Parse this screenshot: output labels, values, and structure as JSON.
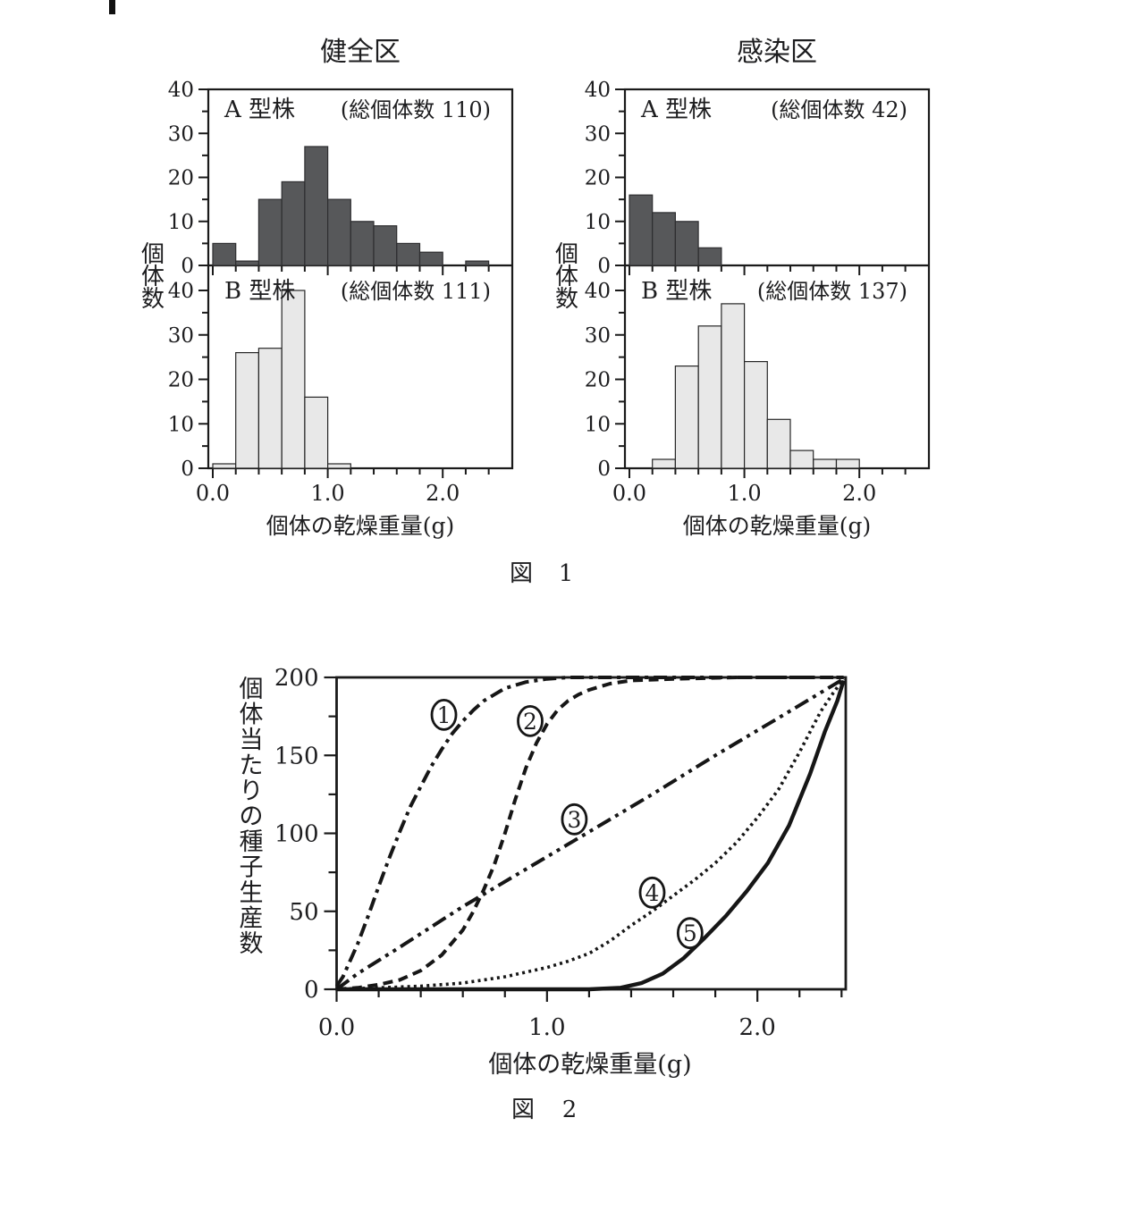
{
  "colors": {
    "axis": "#1a1a1a",
    "text": "#1d1d1f",
    "bar_dark_fill": "#57585a",
    "bar_dark_stroke": "#2e2e30",
    "bar_light_fill": "#e8e8e8",
    "bar_light_stroke": "#262626",
    "curve": "#161616",
    "background": "#ffffff"
  },
  "chart_data": [
    {
      "id": "fig1",
      "type": "bar",
      "caption": [
        "図",
        "1"
      ],
      "ylabel_chars": [
        "個",
        "体",
        "数"
      ],
      "xlabel": "個体の乾燥重量(g)",
      "ylim": [
        0,
        40
      ],
      "y_major_ticks": [
        0,
        10,
        20,
        30,
        40
      ],
      "y_minor_step": 5,
      "x_major_ticks": [
        0,
        1,
        2
      ],
      "x_tick_labels": [
        "0.0",
        "1.0",
        "2.0"
      ],
      "x_minor_step": 0.2,
      "bin_start": 0.0,
      "bin_width": 0.2,
      "groups": [
        {
          "title": "健全区",
          "panels": [
            {
              "strain": "A 型株",
              "total_label": "(総個体数 110)",
              "shade": "dark",
              "values": [
                5,
                1,
                15,
                19,
                27,
                15,
                10,
                9,
                5,
                3,
                0,
                1
              ]
            },
            {
              "strain": "B 型株",
              "total_label": "(総個体数 111)",
              "shade": "light",
              "values": [
                1,
                26,
                27,
                40,
                16,
                1,
                0,
                0,
                0,
                0,
                0,
                0
              ]
            }
          ]
        },
        {
          "title": "感染区",
          "panels": [
            {
              "strain": "A 型株",
              "total_label": "(総個体数 42)",
              "shade": "dark",
              "values": [
                16,
                12,
                10,
                4,
                0,
                0,
                0,
                0,
                0,
                0,
                0,
                0
              ]
            },
            {
              "strain": "B 型株",
              "total_label": "(総個体数 137)",
              "shade": "light",
              "values": [
                0,
                2,
                23,
                32,
                37,
                24,
                11,
                4,
                2,
                2,
                0,
                0
              ]
            }
          ]
        }
      ]
    },
    {
      "id": "fig2",
      "type": "line",
      "caption": [
        "図",
        "2"
      ],
      "ylabel_chars": [
        "個",
        "体",
        "当",
        "た",
        "り",
        "の",
        "種",
        "子",
        "生",
        "産",
        "数"
      ],
      "xlabel": "個体の乾燥重量(g)",
      "ylim": [
        0,
        200
      ],
      "y_major_ticks": [
        0,
        50,
        100,
        150,
        200
      ],
      "y_minor_step": 25,
      "xlim": [
        0,
        2.42
      ],
      "x_major_ticks": [
        0,
        1,
        2
      ],
      "x_tick_labels": [
        "0.0",
        "1.0",
        "2.0"
      ],
      "x_minor_step": 0.2,
      "series": [
        {
          "label": "1",
          "dash_style": "dash-dot",
          "label_pos": [
            0.51,
            176
          ],
          "points": [
            [
              0,
              2
            ],
            [
              0.03,
              8
            ],
            [
              0.06,
              17
            ],
            [
              0.1,
              29
            ],
            [
              0.15,
              47
            ],
            [
              0.2,
              66
            ],
            [
              0.25,
              84
            ],
            [
              0.3,
              101
            ],
            [
              0.35,
              117
            ],
            [
              0.4,
              130
            ],
            [
              0.45,
              143
            ],
            [
              0.5,
              154
            ],
            [
              0.55,
              164
            ],
            [
              0.6,
              172
            ],
            [
              0.65,
              179
            ],
            [
              0.7,
              185
            ],
            [
              0.75,
              189
            ],
            [
              0.8,
              193
            ],
            [
              0.85,
              195
            ],
            [
              0.9,
              197
            ],
            [
              1.0,
              199
            ],
            [
              1.1,
              200
            ],
            [
              1.4,
              200
            ],
            [
              1.8,
              200
            ],
            [
              2.1,
              200
            ],
            [
              2.41,
              200
            ]
          ]
        },
        {
          "label": "2",
          "dash_style": "dashed",
          "label_pos": [
            0.92,
            172
          ],
          "points": [
            [
              0,
              0
            ],
            [
              0.1,
              1
            ],
            [
              0.2,
              3
            ],
            [
              0.3,
              6
            ],
            [
              0.4,
              12
            ],
            [
              0.5,
              22
            ],
            [
              0.55,
              30
            ],
            [
              0.6,
              38
            ],
            [
              0.65,
              50
            ],
            [
              0.7,
              64
            ],
            [
              0.75,
              80
            ],
            [
              0.8,
              100
            ],
            [
              0.85,
              122
            ],
            [
              0.9,
              142
            ],
            [
              0.95,
              158
            ],
            [
              1.0,
              170
            ],
            [
              1.05,
              179
            ],
            [
              1.1,
              185
            ],
            [
              1.15,
              189
            ],
            [
              1.2,
              192
            ],
            [
              1.3,
              196
            ],
            [
              1.4,
              198
            ],
            [
              1.6,
              199
            ],
            [
              1.9,
              200
            ],
            [
              2.41,
              200
            ]
          ]
        },
        {
          "label": "3",
          "dash_style": "dash-dot-dot",
          "label_pos": [
            1.13,
            109
          ],
          "points": [
            [
              0,
              0
            ],
            [
              0.1,
              10
            ],
            [
              0.3,
              27
            ],
            [
              0.6,
              53
            ],
            [
              0.9,
              77
            ],
            [
              1.2,
              101
            ],
            [
              1.5,
              125
            ],
            [
              1.8,
              150
            ],
            [
              2.1,
              174
            ],
            [
              2.41,
              199
            ]
          ]
        },
        {
          "label": "4",
          "dash_style": "dotted",
          "label_pos": [
            1.5,
            62
          ],
          "points": [
            [
              0,
              0
            ],
            [
              0.2,
              1
            ],
            [
              0.4,
              2
            ],
            [
              0.6,
              4
            ],
            [
              0.8,
              8
            ],
            [
              1.0,
              14
            ],
            [
              1.1,
              18
            ],
            [
              1.2,
              23
            ],
            [
              1.3,
              31
            ],
            [
              1.4,
              41
            ],
            [
              1.5,
              50
            ],
            [
              1.6,
              60
            ],
            [
              1.7,
              70
            ],
            [
              1.8,
              81
            ],
            [
              1.9,
              94
            ],
            [
              2.0,
              110
            ],
            [
              2.1,
              128
            ],
            [
              2.2,
              152
            ],
            [
              2.3,
              178
            ],
            [
              2.36,
              190
            ],
            [
              2.41,
              199
            ]
          ]
        },
        {
          "label": "5",
          "dash_style": "solid",
          "label_pos": [
            1.68,
            36
          ],
          "points": [
            [
              0,
              0
            ],
            [
              0.8,
              0
            ],
            [
              1.2,
              0
            ],
            [
              1.35,
              1
            ],
            [
              1.45,
              4
            ],
            [
              1.55,
              10
            ],
            [
              1.65,
              20
            ],
            [
              1.75,
              33
            ],
            [
              1.85,
              47
            ],
            [
              1.95,
              63
            ],
            [
              2.05,
              81
            ],
            [
              2.15,
              105
            ],
            [
              2.25,
              138
            ],
            [
              2.32,
              165
            ],
            [
              2.38,
              185
            ],
            [
              2.41,
              198
            ]
          ]
        }
      ]
    }
  ]
}
